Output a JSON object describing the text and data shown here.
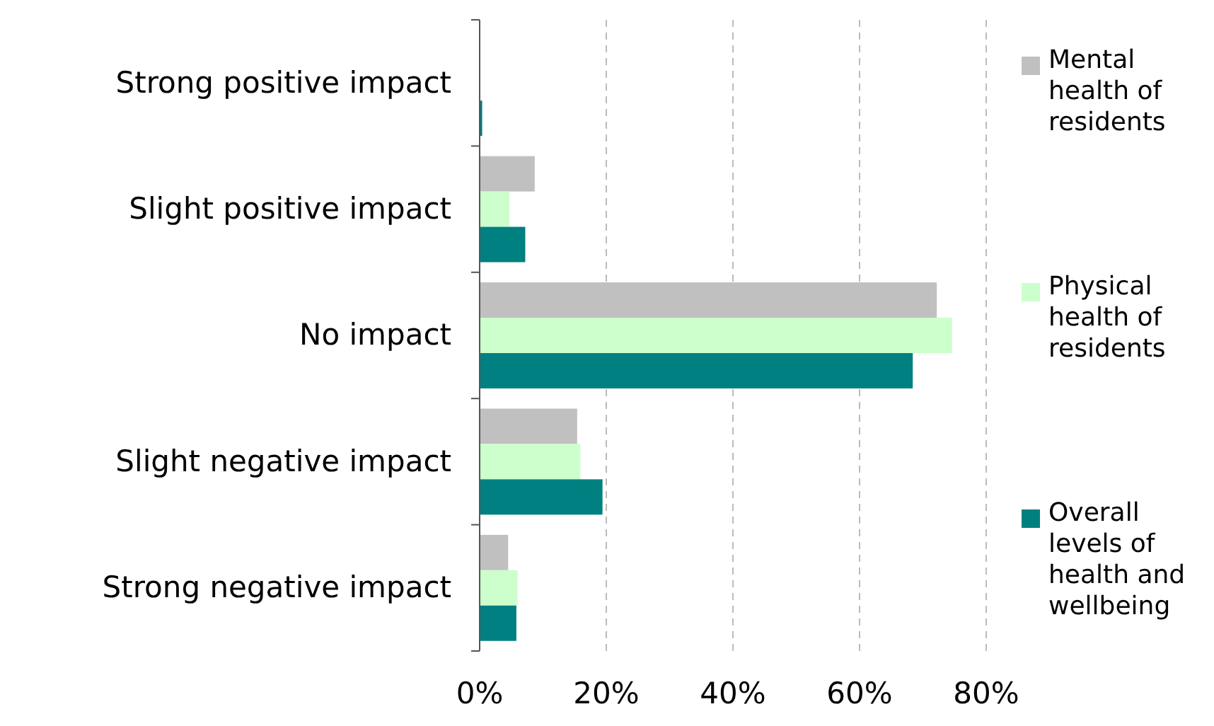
{
  "chart_data": {
    "type": "bar",
    "orientation": "horizontal",
    "categories": [
      "Strong positive impact",
      "Slight positive impact",
      "No impact",
      "Slight negative impact",
      "Strong negative impact"
    ],
    "series": [
      {
        "name": "Mental health of residents",
        "color": "#c0c0c0",
        "values": [
          0,
          8.7,
          72.2,
          15.4,
          4.5
        ]
      },
      {
        "name": "Physical health of residents",
        "color": "#ccffcc",
        "values": [
          0,
          4.7,
          74.6,
          15.9,
          6.0
        ]
      },
      {
        "name": "Overall levels of health and wellbeing",
        "color": "#008080",
        "values": [
          0.4,
          7.2,
          68.4,
          19.4,
          5.8
        ]
      }
    ],
    "xlim": [
      0,
      80
    ],
    "xticks": [
      {
        "value": 0,
        "label": "0%"
      },
      {
        "value": 20,
        "label": "20%"
      },
      {
        "value": 40,
        "label": "40%"
      },
      {
        "value": 60,
        "label": "60%"
      },
      {
        "value": 80,
        "label": "80%"
      }
    ],
    "grid": "x",
    "legend": "right"
  }
}
